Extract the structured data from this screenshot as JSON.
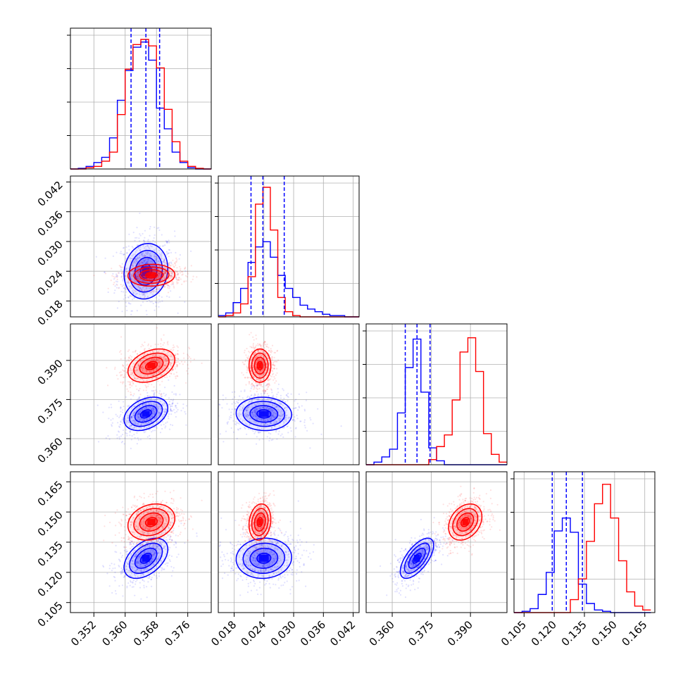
{
  "colors": {
    "blue": "#0000ff",
    "red": "#ff0000",
    "grid": "#b0b0b0",
    "frame": "#000000"
  },
  "chart_data": {
    "type": "corner",
    "parameters": 4,
    "grid": true,
    "series": [
      {
        "color": "blue"
      },
      {
        "color": "red"
      }
    ],
    "axes": [
      {
        "range": [
          0.346,
          0.382
        ],
        "ticks": [
          0.352,
          0.36,
          0.368,
          0.376
        ],
        "tick_labels": [
          "0.352",
          "0.360",
          "0.368",
          "0.376"
        ]
      },
      {
        "range": [
          0.0148,
          0.0432
        ],
        "ticks": [
          0.018,
          0.024,
          0.03,
          0.036,
          0.042
        ],
        "tick_labels": [
          "0.018",
          "0.024",
          "0.030",
          "0.036",
          "0.042"
        ]
      },
      {
        "range": [
          0.35,
          0.404
        ],
        "ticks": [
          0.36,
          0.375,
          0.39
        ],
        "tick_labels": [
          "0.360",
          "0.375",
          "0.390"
        ]
      },
      {
        "range": [
          0.1,
          0.17
        ],
        "ticks": [
          0.105,
          0.12,
          0.135,
          0.15,
          0.165
        ],
        "tick_labels": [
          "0.105",
          "0.120",
          "0.135",
          "0.150",
          "0.165"
        ]
      }
    ],
    "histograms": [
      {
        "quantiles_blue": [
          0.3615,
          0.3653,
          0.3688
        ],
        "edges": [
          0.346,
          0.348,
          0.35,
          0.352,
          0.354,
          0.356,
          0.358,
          0.36,
          0.362,
          0.364,
          0.366,
          0.368,
          0.37,
          0.372,
          0.374,
          0.376,
          0.378,
          0.38,
          0.382
        ],
        "blue": [
          0,
          0.005,
          0.02,
          0.05,
          0.09,
          0.24,
          0.53,
          0.76,
          0.94,
          0.98,
          0.84,
          0.47,
          0.31,
          0.13,
          0.05,
          0.01,
          0,
          0
        ],
        "red": [
          0,
          0,
          0.01,
          0.02,
          0.06,
          0.13,
          0.42,
          0.77,
          0.96,
          1.0,
          0.95,
          0.78,
          0.46,
          0.21,
          0.06,
          0.02,
          0.005,
          0
        ]
      },
      {
        "quantiles_blue": [
          0.0214,
          0.0238,
          0.0281
        ],
        "edges": [
          0.0148,
          0.0163,
          0.0178,
          0.0193,
          0.0208,
          0.0223,
          0.0238,
          0.0253,
          0.0268,
          0.0283,
          0.0298,
          0.0313,
          0.0328,
          0.0343,
          0.0358,
          0.0373,
          0.0388,
          0.0403,
          0.0418,
          0.0432
        ],
        "blue": [
          0.01,
          0.03,
          0.11,
          0.22,
          0.42,
          0.54,
          0.58,
          0.46,
          0.32,
          0.22,
          0.15,
          0.09,
          0.06,
          0.04,
          0.02,
          0.01,
          0.01,
          0,
          0
        ],
        "red": [
          0,
          0.01,
          0.03,
          0.1,
          0.31,
          0.87,
          1.0,
          0.67,
          0.15,
          0.04,
          0.01,
          0,
          0,
          0,
          0,
          0,
          0,
          0,
          0
        ]
      },
      {
        "quantiles_blue": [
          0.365,
          0.3695,
          0.3745
        ],
        "edges": [
          0.35,
          0.353,
          0.356,
          0.359,
          0.362,
          0.365,
          0.368,
          0.371,
          0.374,
          0.377,
          0.38,
          0.383,
          0.386,
          0.389,
          0.392,
          0.395,
          0.398,
          0.401,
          0.404
        ],
        "blue": [
          0,
          0.02,
          0.06,
          0.12,
          0.4,
          0.75,
          0.97,
          0.56,
          0.13,
          0.03,
          0,
          0,
          0,
          0,
          0,
          0,
          0,
          0
        ],
        "red": [
          0,
          0,
          0,
          0,
          0,
          0,
          0,
          0,
          0.04,
          0.14,
          0.23,
          0.5,
          0.87,
          0.98,
          0.72,
          0.24,
          0.08,
          0.02
        ]
      },
      {
        "quantiles_blue": [
          0.119,
          0.126,
          0.134
        ],
        "edges": [
          0.1,
          0.104,
          0.108,
          0.112,
          0.116,
          0.12,
          0.124,
          0.128,
          0.132,
          0.136,
          0.14,
          0.144,
          0.148,
          0.152,
          0.156,
          0.16,
          0.164,
          0.168
        ],
        "blue": [
          0,
          0.01,
          0.03,
          0.14,
          0.31,
          0.63,
          0.73,
          0.62,
          0.22,
          0.07,
          0.02,
          0.01,
          0,
          0,
          0,
          0,
          0
        ],
        "red": [
          0,
          0,
          0,
          0,
          0,
          0,
          0,
          0.1,
          0.26,
          0.55,
          0.84,
          0.99,
          0.73,
          0.4,
          0.16,
          0.05,
          0.02
        ]
      }
    ],
    "pairs": [
      {
        "x": 0,
        "y": 1,
        "blue": {
          "mean": [
            0.3653,
            0.024
          ],
          "sd": [
            0.0028,
            0.0028
          ],
          "corr": 0.1
        },
        "red": {
          "mean": [
            0.3667,
            0.0232
          ],
          "sd": [
            0.003,
            0.0011
          ],
          "corr": 0.05
        }
      },
      {
        "x": 0,
        "y": 2,
        "blue": {
          "mean": [
            0.3653,
            0.3695
          ],
          "sd": [
            0.0028,
            0.0032
          ],
          "corr": 0.35
        },
        "red": {
          "mean": [
            0.3667,
            0.388
          ],
          "sd": [
            0.003,
            0.0032
          ],
          "corr": 0.35
        }
      },
      {
        "x": 1,
        "y": 2,
        "blue": {
          "mean": [
            0.024,
            0.3695
          ],
          "sd": [
            0.0028,
            0.0032
          ],
          "corr": -0.05
        },
        "red": {
          "mean": [
            0.0232,
            0.388
          ],
          "sd": [
            0.0011,
            0.0032
          ],
          "corr": 0.0
        }
      },
      {
        "x": 0,
        "y": 3,
        "blue": {
          "mean": [
            0.3653,
            0.127
          ],
          "sd": [
            0.0028,
            0.005
          ],
          "corr": 0.45
        },
        "red": {
          "mean": [
            0.3667,
            0.145
          ],
          "sd": [
            0.003,
            0.0045
          ],
          "corr": 0.2
        }
      },
      {
        "x": 1,
        "y": 3,
        "blue": {
          "mean": [
            0.024,
            0.127
          ],
          "sd": [
            0.0028,
            0.005
          ],
          "corr": 0.05
        },
        "red": {
          "mean": [
            0.0232,
            0.145
          ],
          "sd": [
            0.0011,
            0.0045
          ],
          "corr": 0.15
        }
      },
      {
        "x": 2,
        "y": 3,
        "blue": {
          "mean": [
            0.3695,
            0.127
          ],
          "sd": [
            0.0032,
            0.005
          ],
          "corr": 0.65
        },
        "red": {
          "mean": [
            0.388,
            0.145
          ],
          "sd": [
            0.0032,
            0.0045
          ],
          "corr": 0.3
        }
      }
    ]
  }
}
